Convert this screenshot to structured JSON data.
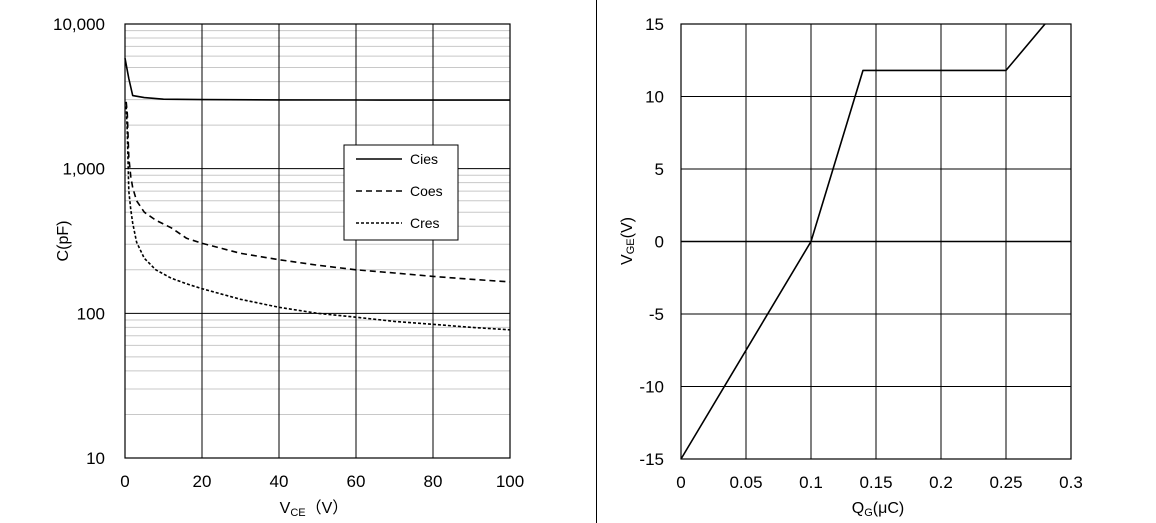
{
  "chart_data": [
    {
      "type": "line",
      "yscale": "log",
      "xlabel": {
        "main": "V",
        "sub": "CE",
        "suffix": "（V）"
      },
      "ylabel": "C(pF)",
      "xlim": [
        0,
        100
      ],
      "ylim": [
        10,
        10000
      ],
      "xticks": [
        0,
        20,
        40,
        60,
        80,
        100
      ],
      "xtick_labels": [
        "0",
        "20",
        "40",
        "60",
        "80",
        "100"
      ],
      "yticks": [
        10,
        100,
        1000,
        10000
      ],
      "ytick_labels": [
        "10",
        "100",
        "1,000",
        "10,000"
      ],
      "grid": true,
      "legend_position": "center-right",
      "series": [
        {
          "name": "Cies",
          "style": "solid",
          "x": [
            0,
            1,
            2,
            5,
            10,
            20,
            40,
            60,
            80,
            100
          ],
          "y": [
            5800,
            4200,
            3200,
            3100,
            3020,
            3000,
            2990,
            2985,
            2980,
            2980
          ]
        },
        {
          "name": "Coes",
          "style": "dashed",
          "x": [
            0.3,
            0.6,
            1,
            1.5,
            2,
            3,
            5,
            8,
            12,
            16,
            20,
            30,
            40,
            50,
            60,
            70,
            80,
            90,
            100
          ],
          "y": [
            2900,
            2400,
            1200,
            880,
            740,
            600,
            500,
            440,
            390,
            330,
            305,
            260,
            235,
            215,
            200,
            190,
            180,
            172,
            165
          ]
        },
        {
          "name": "Cres",
          "style": "short-dashed",
          "x": [
            0.3,
            0.6,
            1,
            1.5,
            2,
            3,
            5,
            8,
            12,
            16,
            20,
            30,
            40,
            50,
            60,
            70,
            80,
            90,
            100
          ],
          "y": [
            2700,
            1800,
            700,
            520,
            420,
            310,
            240,
            200,
            175,
            160,
            148,
            125,
            110,
            100,
            94,
            88,
            84,
            80,
            77
          ]
        }
      ]
    },
    {
      "type": "line",
      "xlabel": {
        "main": "Q",
        "sub": "G",
        "suffix": "(μC)"
      },
      "ylabel": {
        "main": "V",
        "sub": "GE",
        "suffix": "(V)"
      },
      "xlim": [
        0,
        0.3
      ],
      "ylim": [
        -15,
        15
      ],
      "xticks": [
        0,
        0.05,
        0.1,
        0.15,
        0.2,
        0.25,
        0.3
      ],
      "xtick_labels": [
        "0",
        "0.05",
        "0.1",
        "0.15",
        "0.2",
        "0.25",
        "0.3"
      ],
      "yticks": [
        -15,
        -10,
        -5,
        0,
        5,
        10,
        15
      ],
      "ytick_labels": [
        "-15",
        "-10",
        "-5",
        "0",
        "5",
        "10",
        "15"
      ],
      "grid": true,
      "series": [
        {
          "style": "solid",
          "x": [
            0,
            0.1,
            0.14,
            0.25,
            0.28
          ],
          "y": [
            -15,
            0,
            11.8,
            11.8,
            15
          ]
        }
      ]
    }
  ]
}
